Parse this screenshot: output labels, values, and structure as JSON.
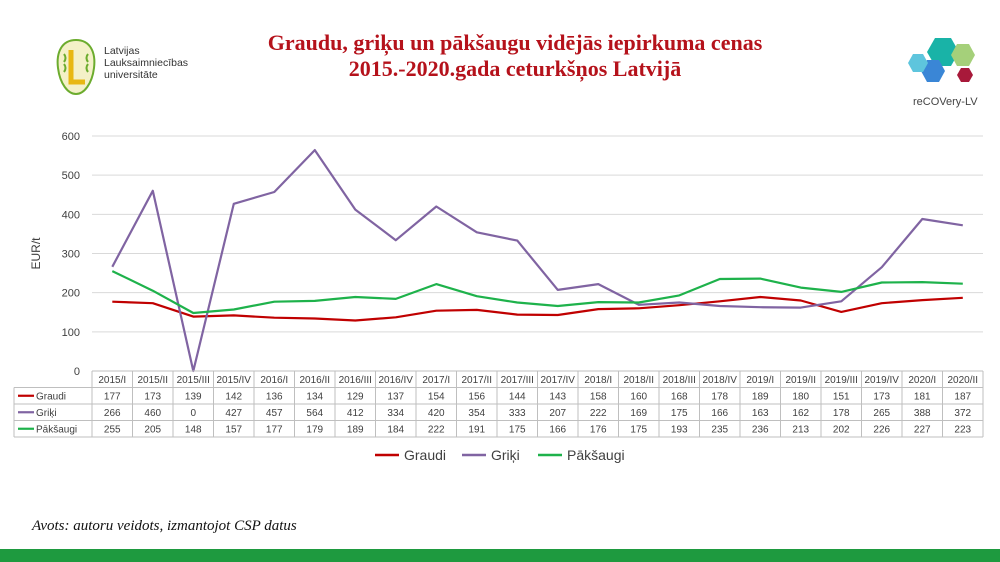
{
  "header": {
    "org_name": [
      "Latvijas",
      "Lauksaimniecības",
      "universitāte"
    ],
    "title_line1": "Graudu, griķu un pākšaugu vidējās iepirkuma cenas",
    "title_line2": "2015.-2020.gada ceturkšņos Latvijā",
    "project_brand": "reCOVery-LV"
  },
  "source_note": "Avots: autoru veidots, izmantojot CSP datus",
  "colors": {
    "title": "#b5121b",
    "graudi": "#c00000",
    "griki": "#8064a2",
    "pakssaugi": "#1eb24b",
    "bottom_bar": "#1e9a3f"
  },
  "chart_data": {
    "type": "line",
    "ylabel": "EUR/t",
    "ylim": [
      0,
      600
    ],
    "yticks": [
      "0",
      "100",
      "200",
      "300",
      "400",
      "500",
      "600"
    ],
    "grid": true,
    "legend_position": "bottom",
    "categories": [
      "2015/I",
      "2015/II",
      "2015/III",
      "2015/IV",
      "2016/I",
      "2016/II",
      "2016/III",
      "2016/IV",
      "2017/I",
      "2017/II",
      "2017/III",
      "2017/IV",
      "2018/I",
      "2018/II",
      "2018/III",
      "2018/IV",
      "2019/I",
      "2019/II",
      "2019/III",
      "2019/IV",
      "2020/I",
      "2020/II"
    ],
    "series": [
      {
        "name": "Graudi",
        "color": "#c00000",
        "values": [
          177,
          173,
          139,
          142,
          136,
          134,
          129,
          137,
          154,
          156,
          144,
          143,
          158,
          160,
          168,
          178,
          189,
          180,
          151,
          173,
          181,
          187
        ]
      },
      {
        "name": "Griķi",
        "color": "#8064a2",
        "values": [
          266,
          460,
          0,
          427,
          457,
          564,
          412,
          334,
          420,
          354,
          333,
          207,
          222,
          169,
          175,
          166,
          163,
          162,
          178,
          265,
          388,
          372
        ]
      },
      {
        "name": "Pākšaugi",
        "color": "#1eb24b",
        "values": [
          255,
          205,
          148,
          157,
          177,
          179,
          189,
          184,
          222,
          191,
          175,
          166,
          176,
          175,
          193,
          235,
          236,
          213,
          202,
          226,
          227,
          223
        ]
      }
    ]
  }
}
